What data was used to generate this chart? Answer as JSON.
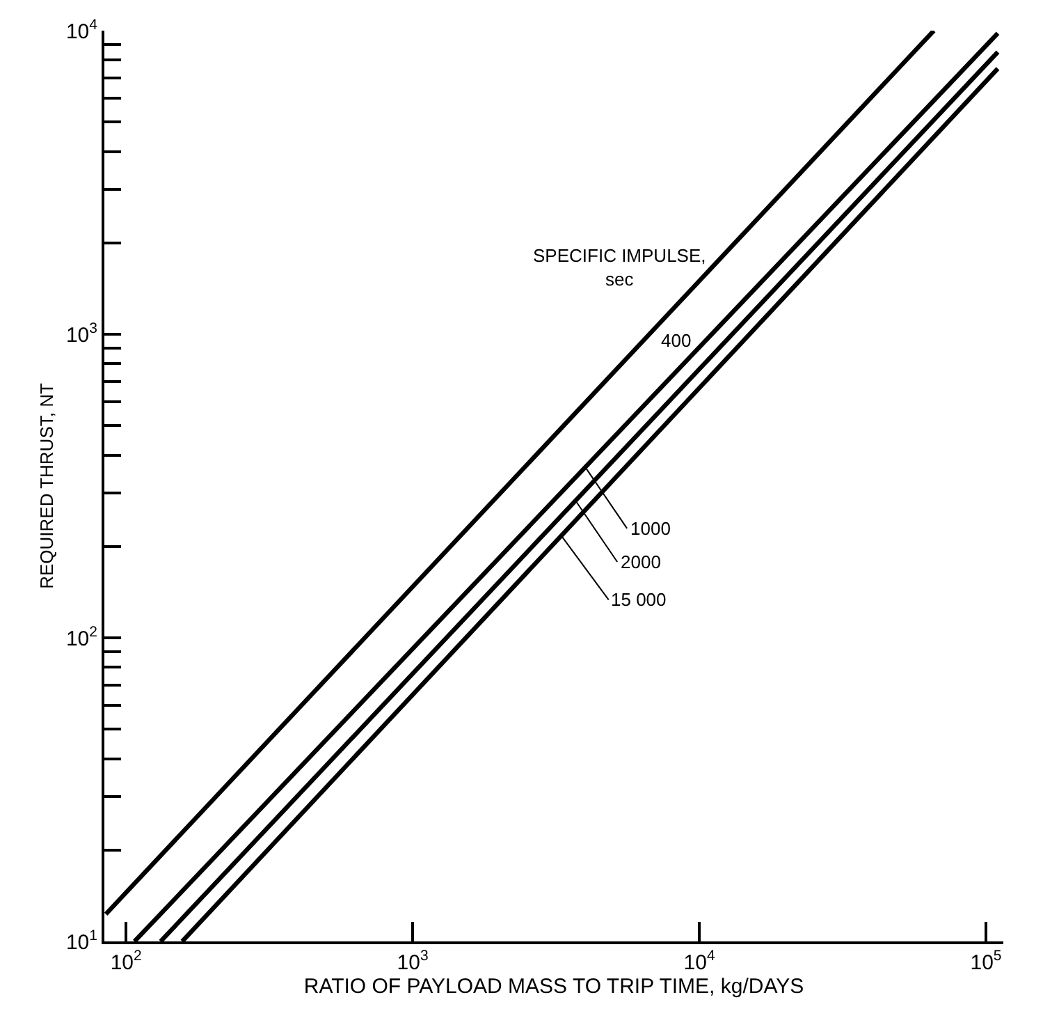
{
  "chart_data": {
    "type": "line",
    "xlabel": "RATIO OF PAYLOAD MASS TO TRIP TIME, kg/DAYS",
    "ylabel": "REQUIRED THRUST, NT",
    "log": "xy",
    "marker": "none",
    "line_style": "solid",
    "xlim": [
      84,
      115000
    ],
    "ylim": [
      10,
      10000
    ],
    "xticks": [
      {
        "value": 100,
        "label": "10$^{2}$"
      },
      {
        "value": 1000,
        "label": "10$^{3}$"
      },
      {
        "value": 10000,
        "label": "10$^{4}$"
      },
      {
        "value": 100000,
        "label": "10$^{5}$"
      }
    ],
    "yticks": [
      {
        "value": 10,
        "label": "10$^{1}$"
      },
      {
        "value": 20,
        "label": null
      },
      {
        "value": 30,
        "label": null
      },
      {
        "value": 40,
        "label": null
      },
      {
        "value": 50,
        "label": null
      },
      {
        "value": 60,
        "label": null
      },
      {
        "value": 70,
        "label": null
      },
      {
        "value": 80,
        "label": null
      },
      {
        "value": 90,
        "label": null
      },
      {
        "value": 100,
        "label": "10$^{2}$"
      },
      {
        "value": 200,
        "label": null
      },
      {
        "value": 300,
        "label": null
      },
      {
        "value": 400,
        "label": null
      },
      {
        "value": 500,
        "label": null
      },
      {
        "value": 600,
        "label": null
      },
      {
        "value": 700,
        "label": null
      },
      {
        "value": 800,
        "label": null
      },
      {
        "value": 900,
        "label": null
      },
      {
        "value": 1000,
        "label": "10$^{3}$"
      },
      {
        "value": 2000,
        "label": null
      },
      {
        "value": 3000,
        "label": null
      },
      {
        "value": 4000,
        "label": null
      },
      {
        "value": 5000,
        "label": null
      },
      {
        "value": 6000,
        "label": null
      },
      {
        "value": 7000,
        "label": null
      },
      {
        "value": 8000,
        "label": null
      },
      {
        "value": 9000,
        "label": null
      },
      {
        "value": 10000,
        "label": "10$^{4}$"
      }
    ],
    "series": [
      {
        "color": "#000000",
        "x": [
          85,
          65800
        ],
        "values": [
          12.3,
          10000
        ]
      },
      {
        "color": "#000000",
        "x": [
          107,
          110000
        ],
        "values": [
          10,
          9800
        ]
      },
      {
        "color": "#000000",
        "x": [
          132,
          110000
        ],
        "values": [
          10,
          8500
        ]
      },
      {
        "color": "#000000",
        "x": [
          157,
          110000
        ],
        "values": [
          10,
          7500
        ]
      }
    ],
    "annotations": [
      "SPECIFIC IMPULSE,\nsec",
      "400",
      {
        "text": "1000",
        "x": 4000,
        "y": 365
      },
      {
        "text": "2000",
        "x": 3700,
        "y": 283
      },
      {
        "text": "15 000",
        "x": 3300,
        "y": 217
      }
    ]
  }
}
